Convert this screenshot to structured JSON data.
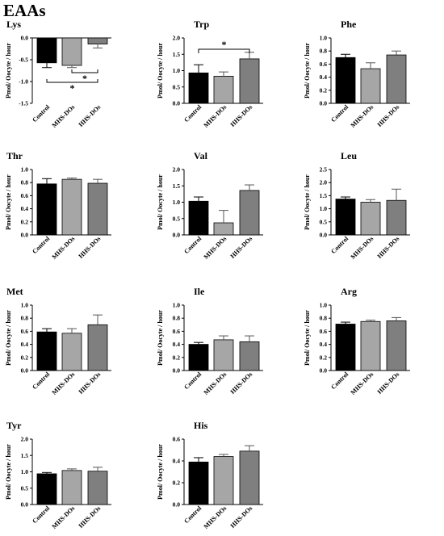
{
  "page_title": "EAAs",
  "colors": {
    "Control": "#000000",
    "MHS-DOs": "#a6a6a6",
    "HHS-DOs": "#7f7f7f"
  },
  "ylabel": "Pmol/ Oocyte / hour",
  "categories": [
    "Control",
    "MHS-DOs",
    "HHS-DOs"
  ],
  "chart_data": [
    {
      "type": "bar",
      "title": "Lys",
      "categories": [
        "Control",
        "MHS-DOs",
        "HHS-DOs"
      ],
      "values": [
        -0.57,
        -0.63,
        -0.14
      ],
      "errors": [
        0.11,
        0.05,
        0.09
      ],
      "ylim": [
        -1.5,
        0.0
      ],
      "yticks": [
        "0.0",
        "-0.5",
        "-1.0",
        "-1.5"
      ],
      "significance": [
        {
          "from": 1,
          "to": 2,
          "label": "*"
        },
        {
          "from": 0,
          "to": 2,
          "label": "*"
        }
      ]
    },
    {
      "type": "bar",
      "title": "Trp",
      "categories": [
        "Control",
        "MHS-DOs",
        "HHS-DOs"
      ],
      "values": [
        0.93,
        0.83,
        1.36
      ],
      "errors": [
        0.25,
        0.13,
        0.2
      ],
      "ylim": [
        0,
        2.0
      ],
      "yticks": [
        "0.0",
        "0.5",
        "1.0",
        "1.5",
        "2.0"
      ],
      "significance": [
        {
          "from": 0,
          "to": 2,
          "label": "*"
        }
      ]
    },
    {
      "type": "bar",
      "title": "Phe",
      "categories": [
        "Control",
        "MHS-DOs",
        "HHS-DOs"
      ],
      "values": [
        0.7,
        0.53,
        0.74
      ],
      "errors": [
        0.05,
        0.09,
        0.06
      ],
      "ylim": [
        0,
        1.0
      ],
      "yticks": [
        "0.0",
        "0.2",
        "0.4",
        "0.6",
        "0.8",
        "1.0"
      ]
    },
    {
      "type": "bar",
      "title": "Thr",
      "categories": [
        "Control",
        "MHS-DOs",
        "HHS-DOs"
      ],
      "values": [
        0.78,
        0.85,
        0.79
      ],
      "errors": [
        0.08,
        0.02,
        0.06
      ],
      "ylim": [
        0,
        1.0
      ],
      "yticks": [
        "0.0",
        "0.2",
        "0.4",
        "0.6",
        "0.8",
        "1.0"
      ]
    },
    {
      "type": "bar",
      "title": "Val",
      "categories": [
        "Control",
        "MHS-DOs",
        "HHS-DOs"
      ],
      "values": [
        1.03,
        0.37,
        1.36
      ],
      "errors": [
        0.13,
        0.38,
        0.17
      ],
      "ylim": [
        0,
        2.0
      ],
      "yticks": [
        "0.0",
        "0.5",
        "1.0",
        "1.5",
        "2.0"
      ]
    },
    {
      "type": "bar",
      "title": "Leu",
      "categories": [
        "Control",
        "MHS-DOs",
        "HHS-DOs"
      ],
      "values": [
        1.37,
        1.25,
        1.32
      ],
      "errors": [
        0.08,
        0.1,
        0.43
      ],
      "ylim": [
        0,
        2.5
      ],
      "yticks": [
        "0.0",
        "0.5",
        "1.0",
        "1.5",
        "2.0",
        "2.5"
      ]
    },
    {
      "type": "bar",
      "title": "Met",
      "categories": [
        "Control",
        "MHS-DOs",
        "HHS-DOs"
      ],
      "values": [
        0.59,
        0.57,
        0.7
      ],
      "errors": [
        0.05,
        0.07,
        0.15
      ],
      "ylim": [
        0,
        1.0
      ],
      "yticks": [
        "0.0",
        "0.2",
        "0.4",
        "0.6",
        "0.8",
        "1.0"
      ]
    },
    {
      "type": "bar",
      "title": "Ile",
      "categories": [
        "Control",
        "MHS-DOs",
        "HHS-DOs"
      ],
      "values": [
        0.4,
        0.47,
        0.44
      ],
      "errors": [
        0.03,
        0.06,
        0.09
      ],
      "ylim": [
        0,
        1.0
      ],
      "yticks": [
        "0.0",
        "0.2",
        "0.4",
        "0.6",
        "0.8",
        "1.0"
      ]
    },
    {
      "type": "bar",
      "title": "Arg",
      "categories": [
        "Control",
        "MHS-DOs",
        "HHS-DOs"
      ],
      "values": [
        0.71,
        0.75,
        0.76
      ],
      "errors": [
        0.03,
        0.02,
        0.05
      ],
      "ylim": [
        0,
        1.0
      ],
      "yticks": [
        "0.0",
        "0.2",
        "0.4",
        "0.6",
        "0.8",
        "1.0"
      ]
    },
    {
      "type": "bar",
      "title": "Tyr",
      "categories": [
        "Control",
        "MHS-DOs",
        "HHS-DOs"
      ],
      "values": [
        0.94,
        1.04,
        1.02
      ],
      "errors": [
        0.04,
        0.05,
        0.12
      ],
      "ylim": [
        0,
        2.0
      ],
      "yticks": [
        "0.0",
        "0.5",
        "1.0",
        "1.5",
        "2.0"
      ]
    },
    {
      "type": "bar",
      "title": "His",
      "categories": [
        "Control",
        "MHS-DOs",
        "HHS-DOs"
      ],
      "values": [
        0.39,
        0.44,
        0.49
      ],
      "errors": [
        0.04,
        0.02,
        0.05
      ],
      "ylim": [
        0,
        0.6
      ],
      "yticks": [
        "0.0",
        "0.2",
        "0.4",
        "0.6"
      ]
    }
  ]
}
